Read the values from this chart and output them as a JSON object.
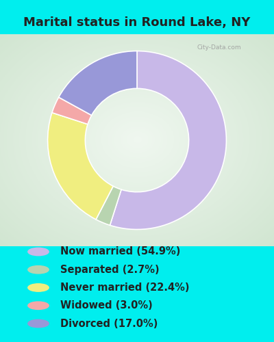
{
  "title": "Marital status in Round Lake, NY",
  "categories": [
    "Now married",
    "Separated",
    "Never married",
    "Widowed",
    "Divorced"
  ],
  "values": [
    54.9,
    2.7,
    22.4,
    3.0,
    17.0
  ],
  "colors": [
    "#c8b8e8",
    "#b8d4b0",
    "#f0ee80",
    "#f4a8a8",
    "#9898d8"
  ],
  "legend_labels": [
    "Now married (54.9%)",
    "Separated (2.7%)",
    "Never married (22.4%)",
    "Widowed (3.0%)",
    "Divorced (17.0%)"
  ],
  "bg_cyan": "#00eeee",
  "bg_chart_center": "#f0f8f4",
  "bg_chart_edge_tl": "#d8edd8",
  "bg_chart_edge_br": "#d8edd8",
  "title_color": "#222222",
  "legend_text_color": "#222222",
  "title_fontsize": 13,
  "legend_fontsize": 10.5,
  "figsize": [
    4.0,
    5.0
  ],
  "dpi": 100,
  "watermark": "City-Data.com"
}
